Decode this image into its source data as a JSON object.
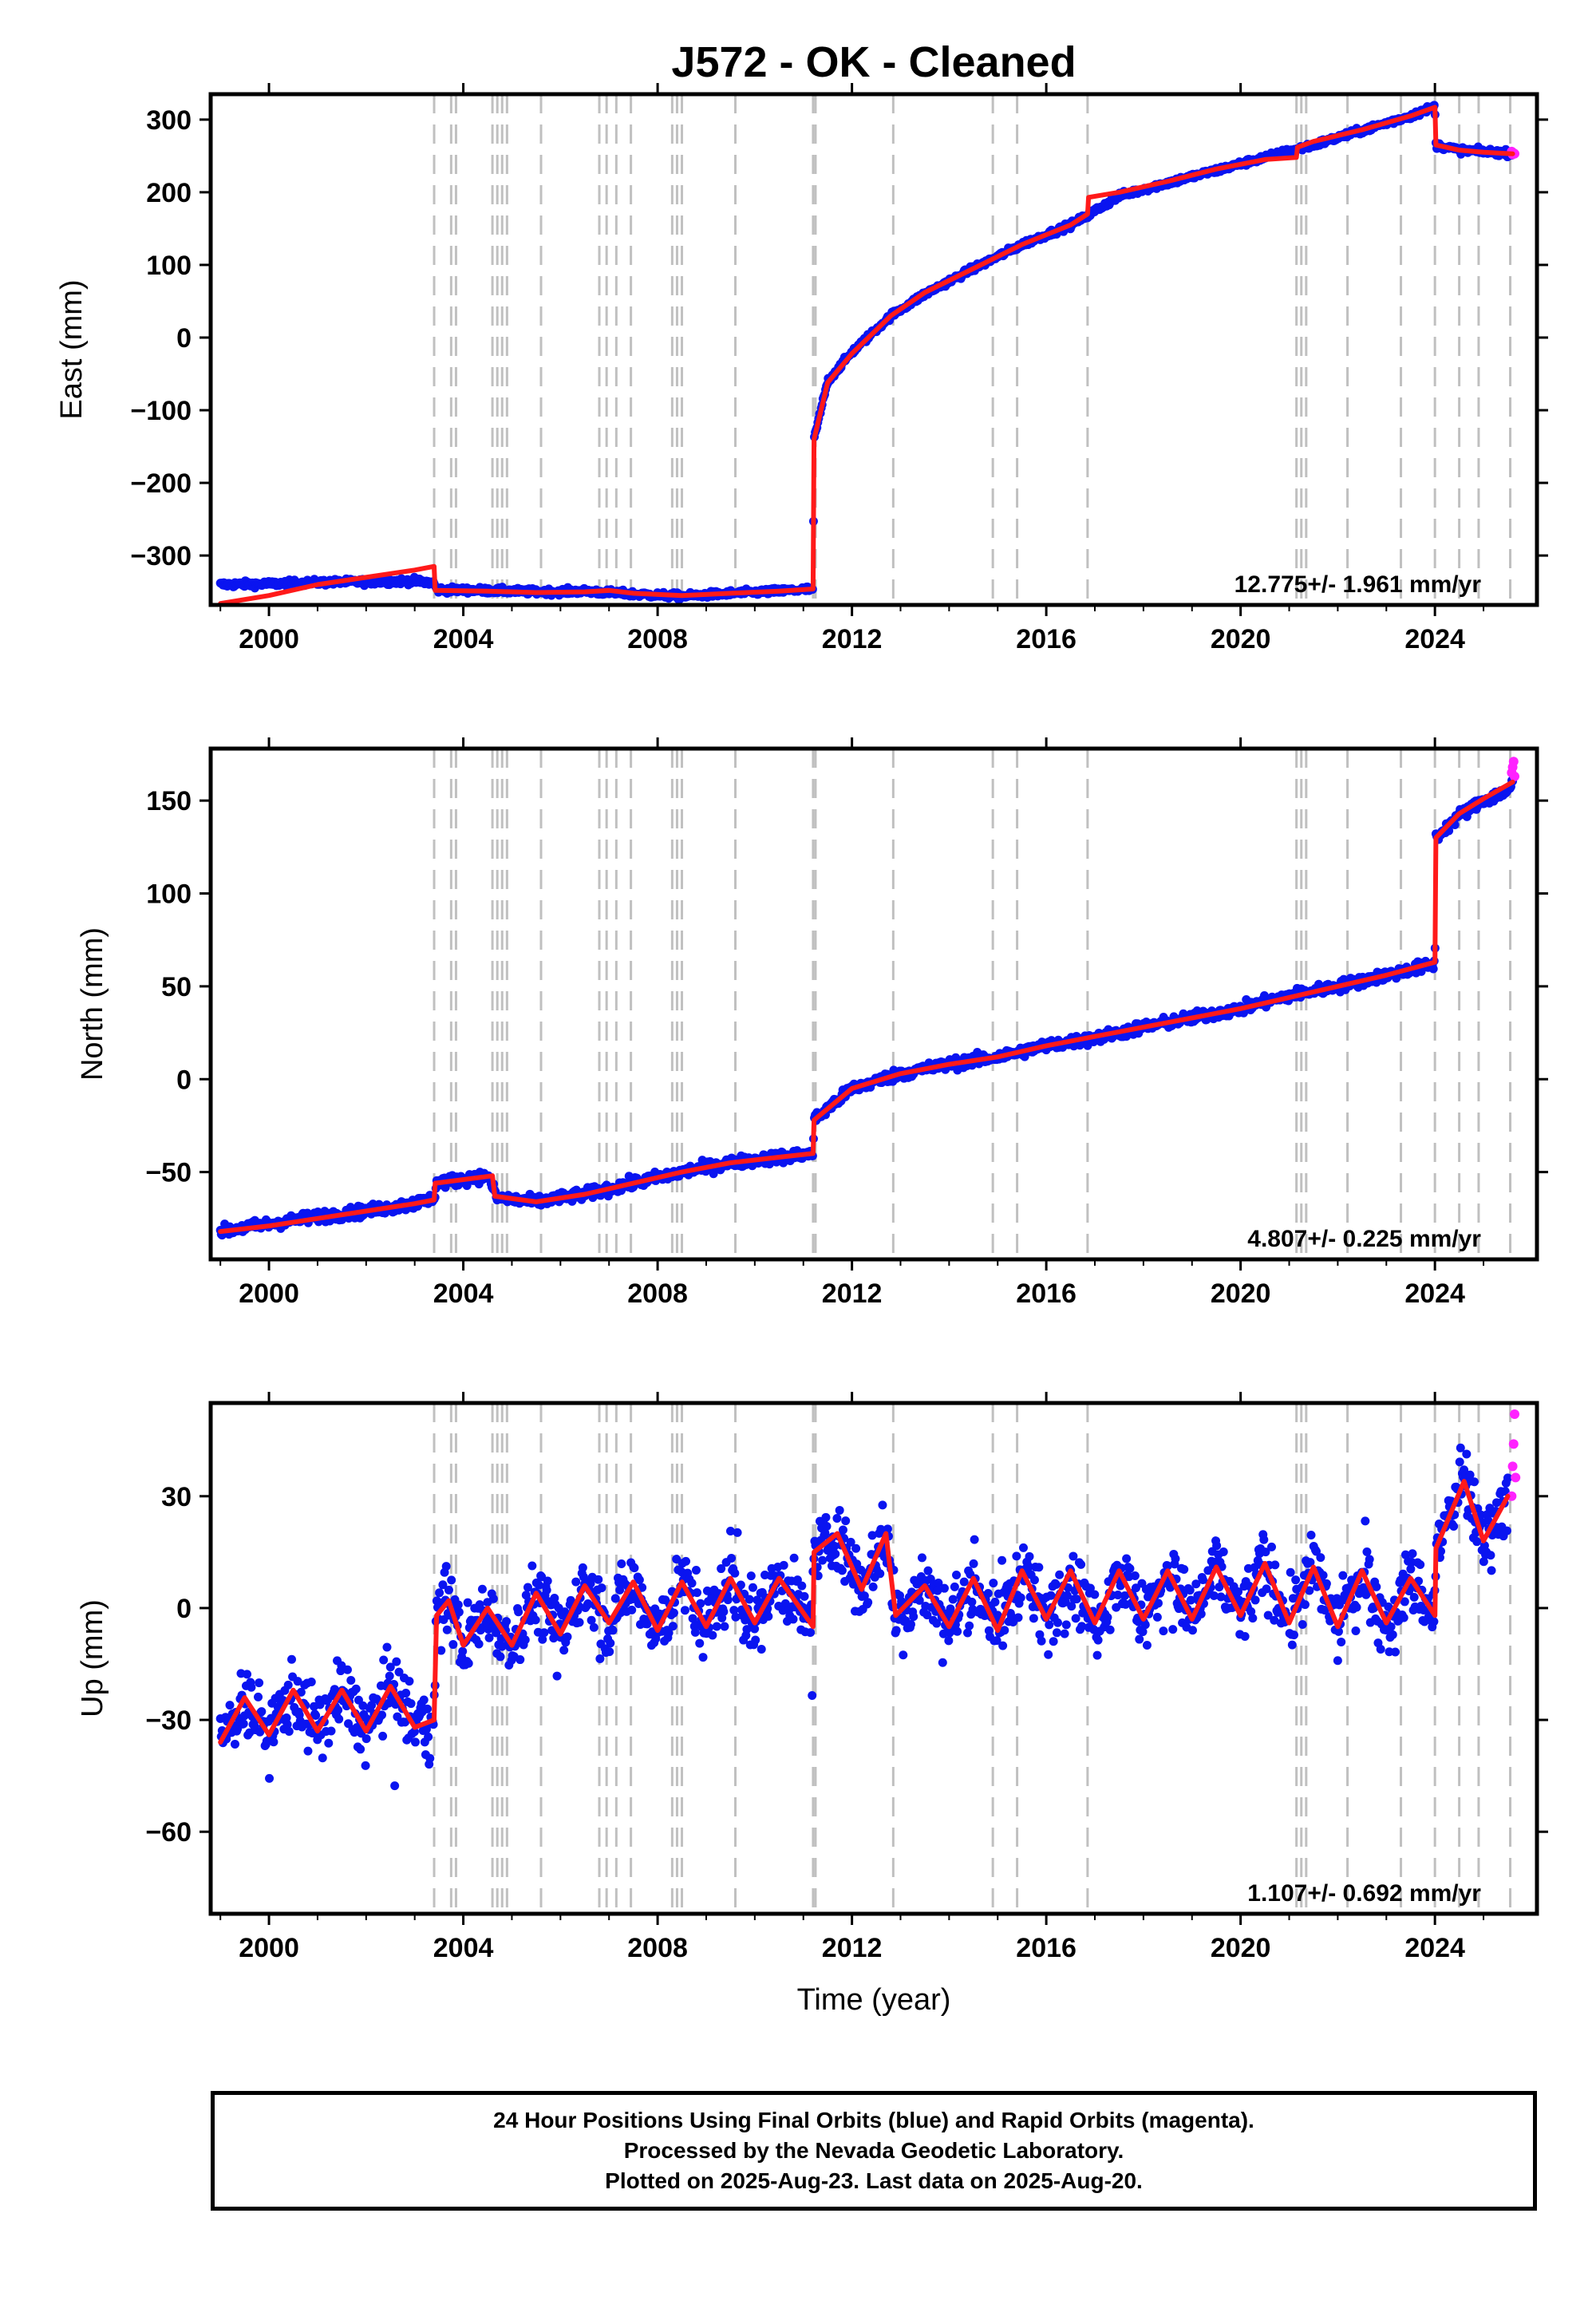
{
  "title": "J572  - OK - Cleaned",
  "xlabel": "Time (year)",
  "colors": {
    "final_orbits": "#0a14f0",
    "rapid_orbits": "#ff22ff",
    "model": "#ff1a1a",
    "events": "#c0c0c0"
  },
  "footer": {
    "line1": "24 Hour Positions Using Final Orbits (blue) and Rapid Orbits (magenta).",
    "line2": "Processed by the Nevada Geodetic Laboratory.",
    "line3": "Plotted on 2025-Aug-23. Last data on 2025-Aug-20."
  },
  "chart_data": [
    {
      "type": "scatter",
      "component": "east",
      "ylabel": "East (mm)",
      "rate_label": "12.775+/- 1.961 mm/yr",
      "xlim": [
        1998.8,
        2026.1
      ],
      "ylim": [
        -368,
        335
      ],
      "xticks": [
        2000,
        2004,
        2008,
        2012,
        2016,
        2020,
        2024
      ],
      "yticks": [
        -300,
        -200,
        -100,
        0,
        100,
        200,
        300
      ],
      "events": [
        2003.4,
        2003.75,
        2003.85,
        2004.6,
        2004.7,
        2004.8,
        2004.9,
        2005.6,
        2006.8,
        2006.95,
        2007.15,
        2007.45,
        2008.3,
        2008.4,
        2008.5,
        2009.6,
        2011.2,
        2011.25,
        2012.85,
        2014.9,
        2015.4,
        2016.85,
        2021.15,
        2021.25,
        2021.35,
        2022.2,
        2023.3,
        2024.0,
        2024.5,
        2024.9,
        2025.55
      ],
      "series": [
        {
          "role": "final_orbits",
          "x": [
            1999.0,
            2000.0,
            2001.0,
            2002.0,
            2003.0,
            2003.4,
            2003.45,
            2004.5,
            2005.5,
            2006.5,
            2007.5,
            2008.5,
            2009.5,
            2010.5,
            2011.2,
            2011.22,
            2011.5,
            2012.0,
            2012.8,
            2013.5,
            2014.5,
            2015.5,
            2016.5,
            2016.9,
            2017.5,
            2018.5,
            2019.5,
            2020.5,
            2021.5,
            2022.5,
            2023.5,
            2024.0,
            2024.02,
            2024.5,
            2025.0,
            2025.5,
            2025.6
          ],
          "y": [
            -340,
            -339,
            -337,
            -336,
            -335,
            -338,
            -347,
            -348,
            -350,
            -349,
            -353,
            -356,
            -352,
            -349,
            -346,
            -140,
            -60,
            -20,
            30,
            60,
            95,
            128,
            155,
            170,
            195,
            213,
            230,
            248,
            265,
            285,
            305,
            318,
            265,
            258,
            256,
            254,
            255
          ]
        },
        {
          "role": "rapid_orbits",
          "x": [
            2025.58,
            2025.6,
            2025.62,
            2025.64
          ],
          "y": [
            256,
            252,
            254,
            253
          ]
        },
        {
          "role": "model",
          "x": [
            1999.0,
            2000.0,
            2001.0,
            2002.0,
            2003.0,
            2003.4,
            2003.42,
            2004.5,
            2005.5,
            2006.5,
            2007.0,
            2007.5,
            2008.5,
            2009.5,
            2010.5,
            2011.2,
            2011.22,
            2011.5,
            2012.0,
            2012.8,
            2013.5,
            2014.5,
            2015.5,
            2016.5,
            2016.85,
            2016.87,
            2017.5,
            2018.5,
            2019.5,
            2020.5,
            2021.15,
            2021.17,
            2021.5,
            2022.5,
            2023.5,
            2024.0,
            2024.02,
            2024.5,
            2025.0,
            2025.6
          ],
          "y": [
            -366,
            -355,
            -340,
            -330,
            -320,
            -315,
            -348,
            -349,
            -351,
            -350,
            -348,
            -352,
            -355,
            -352,
            -349,
            -346,
            -140,
            -62,
            -22,
            30,
            62,
            95,
            128,
            155,
            170,
            193,
            200,
            215,
            232,
            245,
            248,
            262,
            270,
            286,
            305,
            317,
            265,
            258,
            255,
            253
          ]
        }
      ]
    },
    {
      "type": "scatter",
      "component": "north",
      "ylabel": "North (mm)",
      "rate_label": "4.807+/- 0.225 mm/yr",
      "xlim": [
        1998.8,
        2026.1
      ],
      "ylim": [
        -97,
        178
      ],
      "xticks": [
        2000,
        2004,
        2008,
        2012,
        2016,
        2020,
        2024
      ],
      "yticks": [
        -50,
        0,
        50,
        100,
        150
      ],
      "events": [
        2003.4,
        2003.75,
        2003.85,
        2004.6,
        2004.7,
        2004.8,
        2004.9,
        2005.6,
        2006.8,
        2006.95,
        2007.15,
        2007.45,
        2008.3,
        2008.4,
        2008.5,
        2009.6,
        2011.2,
        2011.25,
        2012.85,
        2014.9,
        2015.4,
        2016.85,
        2021.15,
        2021.25,
        2021.35,
        2022.2,
        2023.3,
        2024.0,
        2024.5,
        2024.9,
        2025.55
      ],
      "series": [
        {
          "role": "final_orbits",
          "x": [
            1999.0,
            2000.0,
            2001.0,
            2002.0,
            2003.0,
            2003.4,
            2003.45,
            2004.5,
            2004.7,
            2005.5,
            2006.5,
            2007.5,
            2008.5,
            2009.5,
            2010.5,
            2011.2,
            2011.22,
            2012.0,
            2013.0,
            2014.0,
            2015.0,
            2016.0,
            2017.0,
            2018.0,
            2019.0,
            2020.0,
            2021.0,
            2022.0,
            2023.0,
            2024.0,
            2024.02,
            2024.5,
            2025.0,
            2025.5,
            2025.6
          ],
          "y": [
            -82,
            -78,
            -74,
            -71,
            -67,
            -64,
            -56,
            -52,
            -64,
            -66,
            -62,
            -56,
            -50,
            -45,
            -42,
            -40,
            -22,
            -5,
            3,
            8,
            12,
            18,
            22,
            28,
            33,
            38,
            45,
            50,
            56,
            62,
            130,
            142,
            150,
            155,
            160
          ]
        },
        {
          "role": "rapid_orbits",
          "x": [
            2025.58,
            2025.6,
            2025.62,
            2025.64
          ],
          "y": [
            165,
            168,
            171,
            163
          ]
        },
        {
          "role": "model",
          "x": [
            1999.0,
            2000.0,
            2001.0,
            2002.0,
            2003.0,
            2003.4,
            2003.42,
            2004.6,
            2004.65,
            2005.5,
            2006.5,
            2007.5,
            2008.5,
            2009.5,
            2010.5,
            2011.2,
            2011.22,
            2012.0,
            2013.0,
            2014.0,
            2015.0,
            2016.0,
            2017.0,
            2018.0,
            2019.0,
            2020.0,
            2021.0,
            2022.0,
            2023.0,
            2024.0,
            2024.02,
            2024.5,
            2025.0,
            2025.6
          ],
          "y": [
            -82,
            -79,
            -75,
            -71,
            -67,
            -65,
            -56,
            -52,
            -63,
            -66,
            -62,
            -56,
            -50,
            -45,
            -42,
            -40,
            -22,
            -5,
            3,
            8,
            12,
            18,
            23,
            28,
            33,
            38,
            44,
            50,
            56,
            63,
            130,
            143,
            151,
            160
          ]
        }
      ]
    },
    {
      "type": "scatter",
      "component": "up",
      "ylabel": "Up (mm)",
      "rate_label": "1.107+/- 0.692 mm/yr",
      "xlim": [
        1998.8,
        2026.1
      ],
      "ylim": [
        -82,
        55
      ],
      "xticks": [
        2000,
        2004,
        2008,
        2012,
        2016,
        2020,
        2024
      ],
      "yticks": [
        -60,
        -30,
        0,
        30
      ],
      "events": [
        2003.4,
        2003.75,
        2003.85,
        2004.6,
        2004.7,
        2004.8,
        2004.9,
        2005.6,
        2006.8,
        2006.95,
        2007.15,
        2007.45,
        2008.3,
        2008.4,
        2008.5,
        2009.6,
        2011.2,
        2011.25,
        2012.85,
        2014.9,
        2015.4,
        2016.85,
        2021.15,
        2021.25,
        2021.35,
        2022.2,
        2023.3,
        2024.0,
        2024.5,
        2024.9,
        2025.55
      ],
      "series": [
        {
          "role": "final_orbits",
          "x": [
            1999.0,
            1999.5,
            2000.0,
            2000.5,
            2001.0,
            2001.5,
            2002.0,
            2002.5,
            2003.0,
            2003.4,
            2003.45,
            2003.7,
            2004.0,
            2004.5,
            2005.0,
            2005.5,
            2006.0,
            2006.5,
            2007.0,
            2007.5,
            2008.0,
            2008.5,
            2009.0,
            2009.5,
            2010.0,
            2010.5,
            2011.2,
            2011.22,
            2011.7,
            2012.2,
            2012.7,
            2012.9,
            2013.5,
            2014.0,
            2014.5,
            2015.0,
            2015.5,
            2016.0,
            2016.5,
            2017.0,
            2017.5,
            2018.0,
            2018.5,
            2019.0,
            2019.5,
            2020.0,
            2020.5,
            2021.0,
            2021.5,
            2022.0,
            2022.5,
            2023.0,
            2023.5,
            2024.0,
            2024.02,
            2024.6,
            2025.0,
            2025.5
          ],
          "y": [
            -36,
            -24,
            -34,
            -22,
            -33,
            -22,
            -33,
            -21,
            -32,
            -30,
            -2,
            2,
            -10,
            0,
            -10,
            4,
            -7,
            6,
            -4,
            7,
            -6,
            7,
            -5,
            8,
            -4,
            8,
            -5,
            15,
            20,
            5,
            20,
            -2,
            6,
            -5,
            8,
            -6,
            10,
            -3,
            10,
            -4,
            10,
            -3,
            10,
            -3,
            11,
            -2,
            12,
            -4,
            11,
            -5,
            10,
            -4,
            8,
            -2,
            16,
            34,
            18,
            30
          ]
        },
        {
          "role": "rapid_orbits",
          "x": [
            2025.58,
            2025.6,
            2025.62,
            2025.64,
            2025.66
          ],
          "y": [
            30,
            38,
            44,
            52,
            35
          ]
        },
        {
          "role": "model",
          "x": [
            1999.0,
            1999.5,
            2000.0,
            2000.5,
            2001.0,
            2001.5,
            2002.0,
            2002.5,
            2003.0,
            2003.4,
            2003.45,
            2003.7,
            2004.0,
            2004.5,
            2005.0,
            2005.5,
            2006.0,
            2006.5,
            2007.0,
            2007.5,
            2008.0,
            2008.5,
            2009.0,
            2009.5,
            2010.0,
            2010.5,
            2011.2,
            2011.22,
            2011.7,
            2012.2,
            2012.7,
            2012.9,
            2013.5,
            2014.0,
            2014.5,
            2015.0,
            2015.5,
            2016.0,
            2016.5,
            2017.0,
            2017.5,
            2018.0,
            2018.5,
            2019.0,
            2019.5,
            2020.0,
            2020.5,
            2021.0,
            2021.5,
            2022.0,
            2022.5,
            2023.0,
            2023.5,
            2024.0,
            2024.02,
            2024.6,
            2025.0,
            2025.5
          ],
          "y": [
            -36,
            -24,
            -34,
            -22,
            -33,
            -22,
            -33,
            -21,
            -32,
            -30,
            -2,
            2,
            -10,
            0,
            -10,
            4,
            -7,
            6,
            -4,
            7,
            -6,
            7,
            -5,
            8,
            -4,
            8,
            -5,
            15,
            20,
            5,
            20,
            -2,
            6,
            -5,
            8,
            -6,
            10,
            -3,
            10,
            -4,
            10,
            -3,
            10,
            -3,
            11,
            -2,
            12,
            -4,
            11,
            -5,
            10,
            -4,
            8,
            -2,
            16,
            34,
            18,
            30
          ]
        }
      ]
    }
  ]
}
